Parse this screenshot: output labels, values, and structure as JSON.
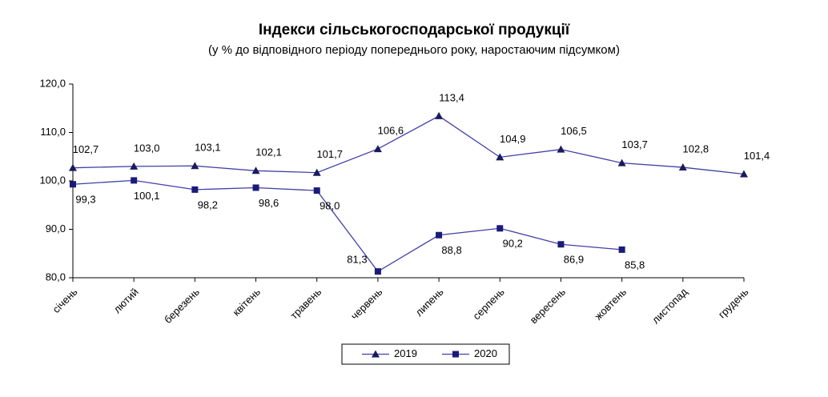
{
  "chart_data": {
    "type": "line",
    "title": "Індекси сільськогосподарської продукції",
    "subtitle": "(у % до відповідного періоду попереднього року, наростаючим підсумком)",
    "categories": [
      "січень",
      "лютий",
      "березень",
      "квітень",
      "травень",
      "червень",
      "липень",
      "серпень",
      "вересень",
      "жовтень",
      "листопад",
      "грудень"
    ],
    "series": [
      {
        "name": "2019",
        "color": "#4040a8",
        "marker": "triangle",
        "values": [
          102.7,
          103.0,
          103.1,
          102.1,
          101.7,
          106.6,
          113.4,
          104.9,
          106.5,
          103.7,
          102.8,
          101.4
        ],
        "value_labels": [
          "102,7",
          "103,0",
          "103,1",
          "102,1",
          "101,7",
          "106,6",
          "113,4",
          "104,9",
          "106,5",
          "103,7",
          "102,8",
          "101,4"
        ]
      },
      {
        "name": "2020",
        "color": "#4040a8",
        "marker": "square",
        "values": [
          99.3,
          100.1,
          98.2,
          98.6,
          98.0,
          81.3,
          88.8,
          90.2,
          86.9,
          85.8,
          null,
          null
        ],
        "value_labels": [
          "99,3",
          "100,1",
          "98,2",
          "98,6",
          "98,0",
          "81,3",
          "88,8",
          "90,2",
          "86,9",
          "85,8",
          null,
          null
        ]
      }
    ],
    "ylim": [
      80,
      120
    ],
    "yticks": [
      {
        "value": 80,
        "label": "80,0"
      },
      {
        "value": 90,
        "label": "90,0"
      },
      {
        "value": 100,
        "label": "100,0"
      },
      {
        "value": 110,
        "label": "110,0"
      },
      {
        "value": 120,
        "label": "120,0"
      }
    ]
  }
}
